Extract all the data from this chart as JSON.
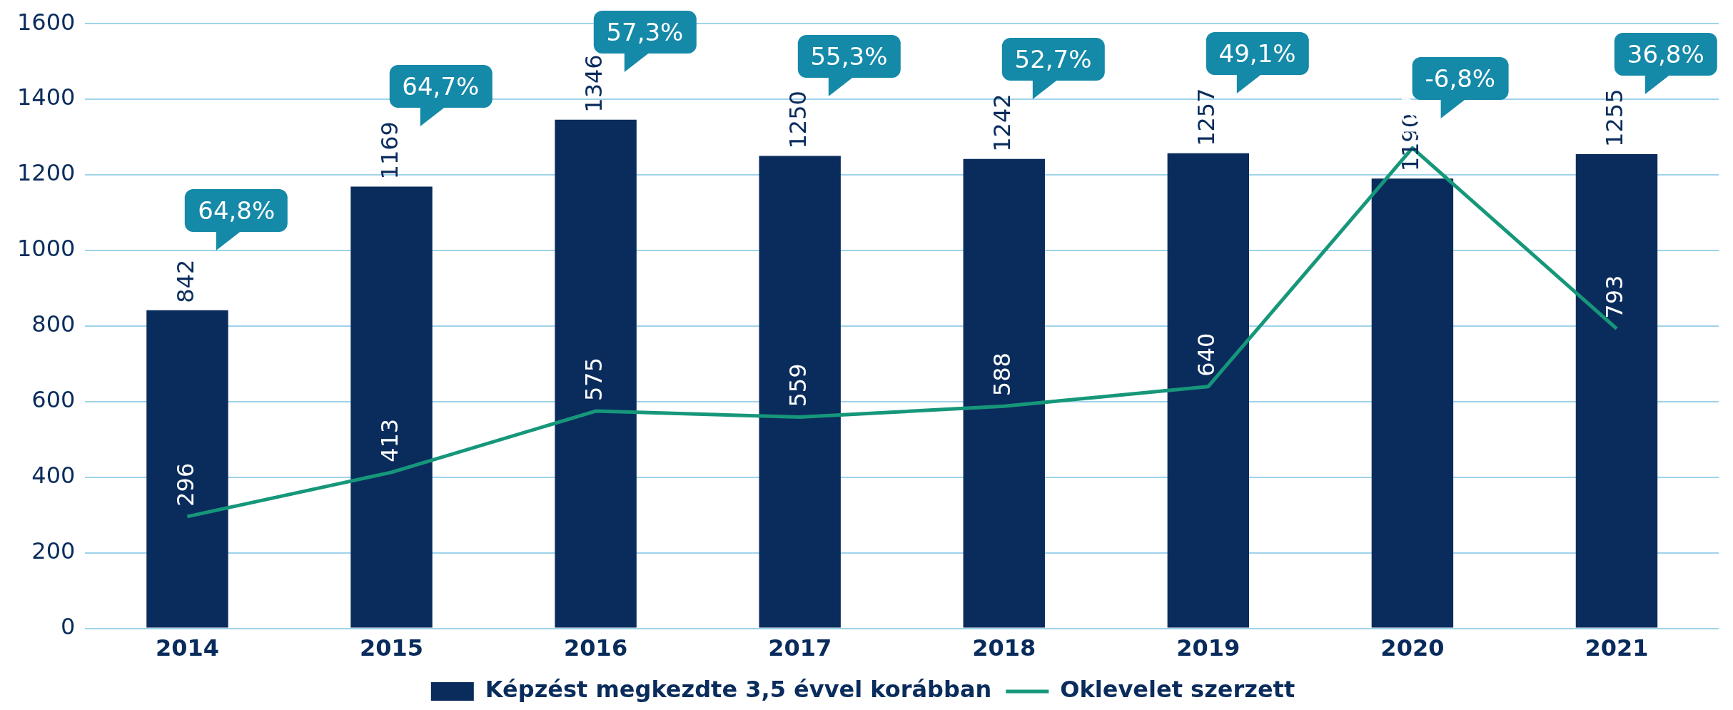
{
  "chart_data": {
    "type": "bar",
    "categories": [
      "2014",
      "2015",
      "2016",
      "2017",
      "2018",
      "2019",
      "2020",
      "2021"
    ],
    "series": [
      {
        "name": "Képzést megkezdte 3,5 évvel korábban",
        "color": "#0a2c5c",
        "values": [
          842,
          1169,
          1346,
          1250,
          1242,
          1257,
          1190,
          1255
        ]
      },
      {
        "name": "Oklevelet szerzett",
        "type": "line",
        "color": "#16977a",
        "values": [
          296,
          413,
          575,
          559,
          588,
          640,
          1271,
          793
        ]
      }
    ],
    "ylim": [
      0,
      1600
    ],
    "yticks": [
      0,
      200,
      400,
      600,
      800,
      1000,
      1200,
      1400,
      1600
    ],
    "grid": "y",
    "legend": "bottom",
    "data_labels": true,
    "marker": "none",
    "line_style": "solid",
    "annotations": [
      "64,8%",
      "64,7%",
      "57,3%",
      "55,3%",
      "52,7%",
      "49,1%",
      "-6,8%",
      "36,8%"
    ]
  }
}
